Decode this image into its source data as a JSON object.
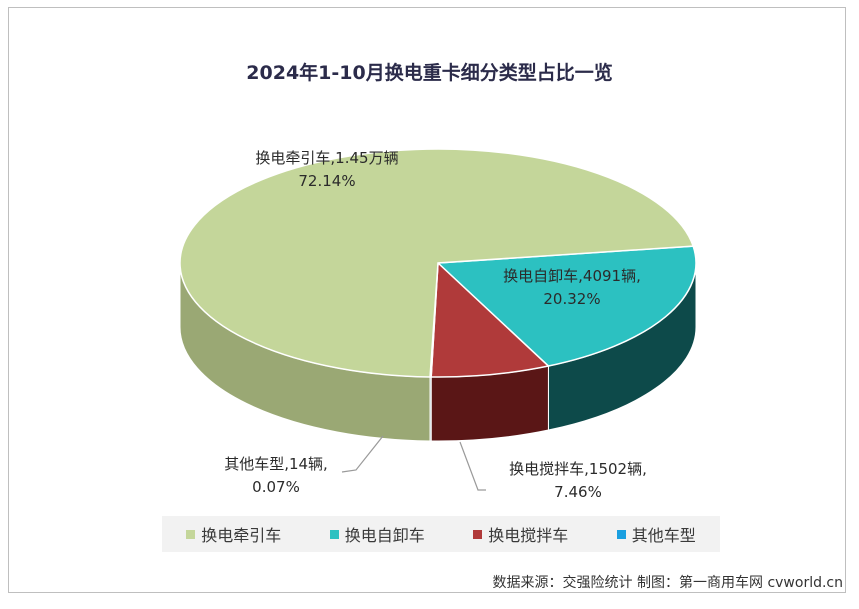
{
  "chart_data": {
    "type": "pie",
    "title": "2024年1-10月换电重卡细分类型占比一览",
    "slices": [
      {
        "name": "换电牵引车",
        "label_line1": "换电牵引车,1.45万辆",
        "label_line2": "72.14%",
        "percent": 72.14,
        "color": "#c4d69a",
        "side_color": "#9aa874"
      },
      {
        "name": "换电自卸车",
        "label_line1": "换电自卸车,4091辆,",
        "label_line2": "20.32%",
        "percent": 20.32,
        "color": "#2cc1c1",
        "side_color": "#0d4a4a"
      },
      {
        "name": "换电搅拌车",
        "label_line1": "换电搅拌车,1502辆,",
        "label_line2": "7.46%",
        "percent": 7.46,
        "color": "#b03a3a",
        "side_color": "#5a1616"
      },
      {
        "name": "其他车型",
        "label_line1": "其他车型,14辆,",
        "label_line2": "0.07%",
        "percent": 0.07,
        "color": "#1a9fe0",
        "side_color": "#0d5a80"
      }
    ],
    "legend": [
      "换电牵引车",
      "换电自卸车",
      "换电搅拌车",
      "其他车型"
    ],
    "legend_position": "bottom"
  },
  "source": "数据来源：交强险统计  制图：第一商用车网 cvworld.cn"
}
